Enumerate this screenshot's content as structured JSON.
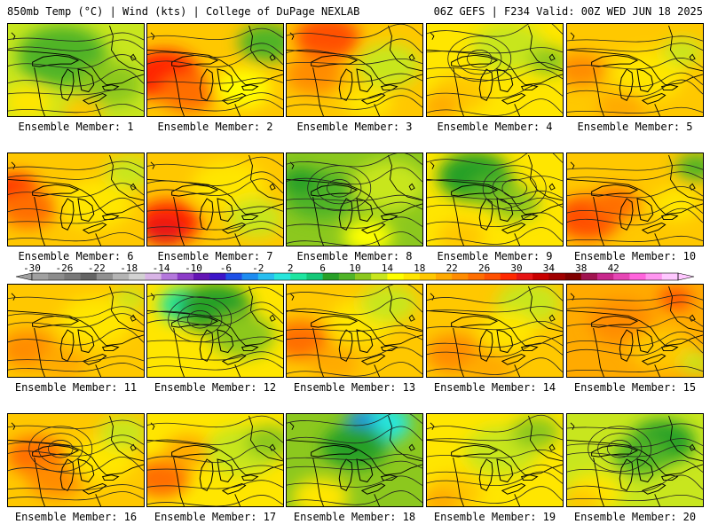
{
  "header": {
    "left": "850mb Temp (°C) | Wind (kts) | College of DuPage NEXLAB",
    "right": "06Z GEFS | F234 Valid: 00Z WED JUN 18 2025"
  },
  "member_prefix": "Ensemble Member: ",
  "colorbar": {
    "tick_labels": [
      "-30",
      "-26",
      "-22",
      "-18",
      "-14",
      "-10",
      "-6",
      "-2",
      "2",
      "6",
      "10",
      "14",
      "18",
      "22",
      "26",
      "30",
      "34",
      "38",
      "42"
    ],
    "colors": [
      "#a0a0a0",
      "#8c8c8c",
      "#787878",
      "#646464",
      "#909090",
      "#b4b4b4",
      "#d2d2d2",
      "#d8b4e6",
      "#b478dc",
      "#8c3cc8",
      "#6414b4",
      "#3c14c8",
      "#1e50e6",
      "#1e8cf0",
      "#28bef0",
      "#28e6dc",
      "#1ee6a0",
      "#14c878",
      "#28a028",
      "#50b428",
      "#8cc81e",
      "#c8e61e",
      "#ffff00",
      "#ffe600",
      "#ffc800",
      "#ffaa00",
      "#ff8c00",
      "#ff6e00",
      "#ff5000",
      "#ff2800",
      "#e61414",
      "#c80000",
      "#a00000",
      "#800000",
      "#a01450",
      "#c8288c",
      "#e646b4",
      "#ff64dc",
      "#ff96f0",
      "#ffc8ff"
    ]
  },
  "members": [
    {
      "label": "1",
      "base": "#c8e61e",
      "blobs": [
        [
          "#50b428",
          0.4,
          0.35,
          0.55
        ],
        [
          "#8cc81e",
          0.75,
          0.65,
          0.4
        ],
        [
          "#ffe600",
          0.15,
          0.85,
          0.3
        ],
        [
          "#ffc800",
          0.55,
          0.95,
          0.25
        ]
      ]
    },
    {
      "label": "2",
      "base": "#ffc800",
      "blobs": [
        [
          "#ff2800",
          0.12,
          0.55,
          0.45
        ],
        [
          "#ff6e00",
          0.3,
          0.75,
          0.35
        ],
        [
          "#50b428",
          0.88,
          0.2,
          0.35
        ],
        [
          "#ffff00",
          0.7,
          0.7,
          0.35
        ]
      ]
    },
    {
      "label": "3",
      "base": "#ffc800",
      "blobs": [
        [
          "#ff5000",
          0.3,
          0.15,
          0.4
        ],
        [
          "#ff8c00",
          0.2,
          0.55,
          0.35
        ],
        [
          "#c8e61e",
          0.75,
          0.45,
          0.4
        ],
        [
          "#ffe600",
          0.6,
          0.85,
          0.3
        ]
      ]
    },
    {
      "label": "4",
      "base": "#ffe600",
      "blobs": [
        [
          "#c8e61e",
          0.6,
          0.25,
          0.45
        ],
        [
          "#8cc81e",
          0.9,
          0.4,
          0.25
        ],
        [
          "#ffc800",
          0.25,
          0.75,
          0.35
        ],
        [
          "#ffaa00",
          0.1,
          0.9,
          0.25
        ]
      ]
    },
    {
      "label": "5",
      "base": "#ffc800",
      "blobs": [
        [
          "#ffe600",
          0.6,
          0.55,
          0.45
        ],
        [
          "#ff8c00",
          0.1,
          0.5,
          0.3
        ],
        [
          "#c8e61e",
          0.85,
          0.3,
          0.25
        ],
        [
          "#ffaa00",
          0.4,
          0.9,
          0.3
        ]
      ]
    },
    {
      "label": "6",
      "base": "#ffc800",
      "blobs": [
        [
          "#ff2800",
          0.05,
          0.4,
          0.3
        ],
        [
          "#ff6e00",
          0.15,
          0.6,
          0.35
        ],
        [
          "#ffe600",
          0.65,
          0.55,
          0.45
        ],
        [
          "#c8e61e",
          0.9,
          0.2,
          0.3
        ]
      ]
    },
    {
      "label": "7",
      "base": "#ffc800",
      "blobs": [
        [
          "#ff2800",
          0.15,
          0.75,
          0.4
        ],
        [
          "#e61414",
          0.12,
          0.85,
          0.25
        ],
        [
          "#ffe600",
          0.6,
          0.35,
          0.45
        ],
        [
          "#c8e61e",
          0.8,
          0.7,
          0.35
        ]
      ]
    },
    {
      "label": "8",
      "base": "#8cc81e",
      "blobs": [
        [
          "#50b428",
          0.25,
          0.45,
          0.45
        ],
        [
          "#c8e61e",
          0.75,
          0.35,
          0.45
        ],
        [
          "#ffff00",
          0.6,
          0.9,
          0.3
        ],
        [
          "#28a028",
          0.1,
          0.3,
          0.25
        ]
      ]
    },
    {
      "label": "9",
      "base": "#ffe600",
      "blobs": [
        [
          "#28a028",
          0.35,
          0.25,
          0.45
        ],
        [
          "#50b428",
          0.5,
          0.4,
          0.3
        ],
        [
          "#8cc81e",
          0.65,
          0.55,
          0.3
        ],
        [
          "#ffc800",
          0.25,
          0.9,
          0.3
        ]
      ]
    },
    {
      "label": "10",
      "base": "#ffc800",
      "blobs": [
        [
          "#ff5000",
          0.15,
          0.7,
          0.4
        ],
        [
          "#ff6e00",
          0.35,
          0.55,
          0.3
        ],
        [
          "#50b428",
          0.95,
          0.15,
          0.25
        ],
        [
          "#ffe600",
          0.8,
          0.55,
          0.3
        ]
      ]
    },
    {
      "label": "11",
      "base": "#ffc800",
      "blobs": [
        [
          "#ffe600",
          0.65,
          0.4,
          0.45
        ],
        [
          "#ff8c00",
          0.15,
          0.7,
          0.35
        ],
        [
          "#ffaa00",
          0.4,
          0.85,
          0.3
        ],
        [
          "#c8e61e",
          0.9,
          0.15,
          0.2
        ]
      ]
    },
    {
      "label": "12",
      "base": "#ffe600",
      "blobs": [
        [
          "#28e6dc",
          0.3,
          0.2,
          0.2
        ],
        [
          "#1ee6a0",
          0.28,
          0.22,
          0.32
        ],
        [
          "#28a028",
          0.5,
          0.25,
          0.45
        ],
        [
          "#8cc81e",
          0.7,
          0.55,
          0.4
        ]
      ]
    },
    {
      "label": "13",
      "base": "#ffc800",
      "blobs": [
        [
          "#ff6e00",
          0.1,
          0.6,
          0.35
        ],
        [
          "#ffe600",
          0.55,
          0.4,
          0.4
        ],
        [
          "#c8e61e",
          0.75,
          0.2,
          0.35
        ],
        [
          "#ffaa00",
          0.35,
          0.85,
          0.3
        ]
      ]
    },
    {
      "label": "14",
      "base": "#ffc800",
      "blobs": [
        [
          "#c8e61e",
          0.75,
          0.2,
          0.4
        ],
        [
          "#ffe600",
          0.6,
          0.5,
          0.35
        ],
        [
          "#ff8c00",
          0.2,
          0.75,
          0.35
        ],
        [
          "#ffaa00",
          0.45,
          0.9,
          0.3
        ]
      ]
    },
    {
      "label": "15",
      "base": "#ffaa00",
      "blobs": [
        [
          "#ff8c00",
          0.4,
          0.4,
          0.4
        ],
        [
          "#ff5000",
          0.8,
          0.15,
          0.2
        ],
        [
          "#ffc800",
          0.7,
          0.7,
          0.4
        ],
        [
          "#c8e61e",
          0.95,
          0.85,
          0.2
        ]
      ]
    },
    {
      "label": "16",
      "base": "#ffc800",
      "blobs": [
        [
          "#ff6e00",
          0.2,
          0.45,
          0.35
        ],
        [
          "#ff8c00",
          0.35,
          0.7,
          0.35
        ],
        [
          "#ffe600",
          0.7,
          0.5,
          0.4
        ],
        [
          "#c8e61e",
          0.85,
          0.2,
          0.3
        ]
      ]
    },
    {
      "label": "17",
      "base": "#ffe600",
      "blobs": [
        [
          "#ff6e00",
          0.1,
          0.7,
          0.35
        ],
        [
          "#ffaa00",
          0.3,
          0.4,
          0.3
        ],
        [
          "#c8e61e",
          0.7,
          0.4,
          0.45
        ],
        [
          "#8cc81e",
          0.9,
          0.3,
          0.3
        ]
      ]
    },
    {
      "label": "18",
      "base": "#8cc81e",
      "blobs": [
        [
          "#28e6dc",
          0.7,
          0.1,
          0.35
        ],
        [
          "#1e8cf0",
          0.55,
          0.05,
          0.18
        ],
        [
          "#28a028",
          0.5,
          0.35,
          0.4
        ],
        [
          "#ffe600",
          0.25,
          0.9,
          0.35
        ]
      ]
    },
    {
      "label": "19",
      "base": "#ffe600",
      "blobs": [
        [
          "#c8e61e",
          0.55,
          0.4,
          0.45
        ],
        [
          "#8cc81e",
          0.8,
          0.2,
          0.3
        ],
        [
          "#ffc800",
          0.2,
          0.85,
          0.35
        ],
        [
          "#ffaa00",
          0.1,
          0.95,
          0.25
        ]
      ]
    },
    {
      "label": "20",
      "base": "#c8e61e",
      "blobs": [
        [
          "#28a028",
          0.7,
          0.3,
          0.4
        ],
        [
          "#50b428",
          0.55,
          0.45,
          0.35
        ],
        [
          "#ffe600",
          0.2,
          0.85,
          0.35
        ],
        [
          "#ffc800",
          0.1,
          0.95,
          0.25
        ]
      ]
    }
  ]
}
